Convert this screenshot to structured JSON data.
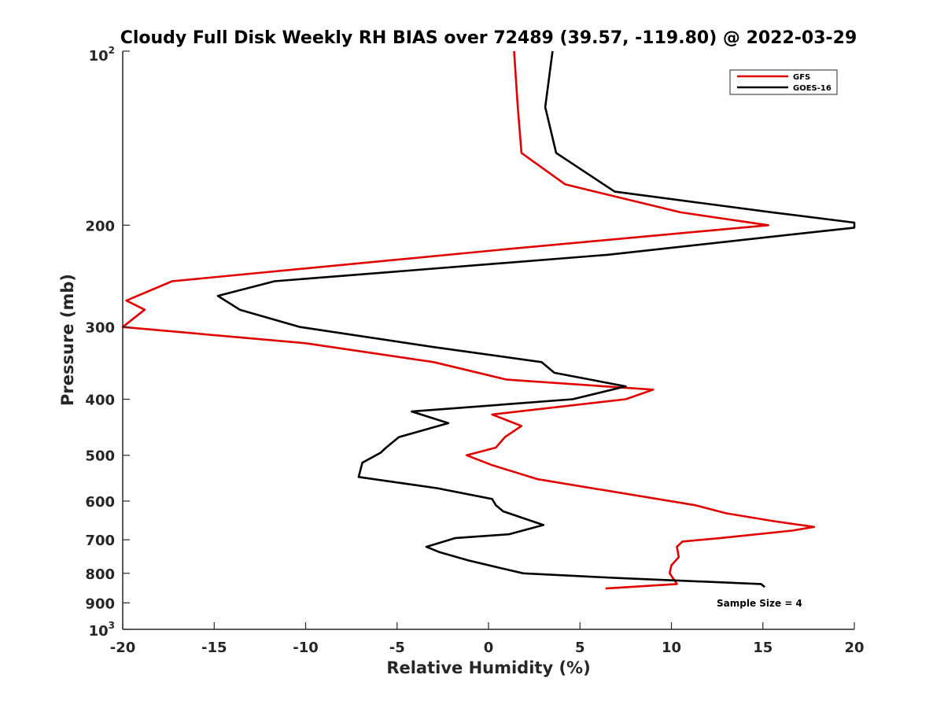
{
  "chart_data": {
    "type": "line",
    "title": "Cloudy Full Disk Weekly RH BIAS over 72489 (39.57, -119.80) @ 2022-03-29",
    "xlabel": "Relative Humidity (%)",
    "ylabel": "Pressure (mb)",
    "xlim": [
      -20,
      20
    ],
    "ylim": [
      100,
      1000
    ],
    "yscale": "log",
    "y_reversed": true,
    "grid": false,
    "legend_placement": "top-right",
    "annotation": "Sample Size = 4",
    "x_ticks": [
      -20,
      -15,
      -10,
      -5,
      0,
      5,
      10,
      15,
      20
    ],
    "x_tick_labels": [
      "-20",
      "-15",
      "-10",
      "-5",
      "0",
      "5",
      "10",
      "15",
      "20"
    ],
    "y_ticks": [
      100,
      200,
      300,
      400,
      500,
      600,
      700,
      800,
      900,
      1000
    ],
    "y_tick_labels": [
      {
        "base": "10",
        "sup": "2"
      },
      {
        "base": "200"
      },
      {
        "base": "300"
      },
      {
        "base": "400"
      },
      {
        "base": "500"
      },
      {
        "base": "600"
      },
      {
        "base": "700"
      },
      {
        "base": "800"
      },
      {
        "base": "900"
      },
      {
        "base": "10",
        "sup": "3"
      }
    ],
    "series": [
      {
        "name": "GFS",
        "color": "#e00000",
        "points": [
          [
            1.4,
            100
          ],
          [
            1.6,
            125
          ],
          [
            1.8,
            150
          ],
          [
            4.2,
            170
          ],
          [
            10.5,
            190
          ],
          [
            15.3,
            200
          ],
          [
            1.0,
            220
          ],
          [
            -17.3,
            250
          ],
          [
            -19.8,
            270
          ],
          [
            -18.8,
            280
          ],
          [
            -20.0,
            300
          ],
          [
            -10.0,
            320
          ],
          [
            -3.0,
            345
          ],
          [
            1.0,
            370
          ],
          [
            9.0,
            385
          ],
          [
            7.5,
            400
          ],
          [
            0.2,
            425
          ],
          [
            1.8,
            445
          ],
          [
            0.9,
            465
          ],
          [
            0.4,
            485
          ],
          [
            -1.2,
            500
          ],
          [
            0.2,
            520
          ],
          [
            2.7,
            550
          ],
          [
            11.3,
            610
          ],
          [
            13.0,
            630
          ],
          [
            15.6,
            650
          ],
          [
            17.8,
            665
          ],
          [
            16.6,
            675
          ],
          [
            12.7,
            695
          ],
          [
            10.6,
            705
          ],
          [
            10.3,
            720
          ],
          [
            10.4,
            750
          ],
          [
            10.0,
            775
          ],
          [
            9.9,
            800
          ],
          [
            10.2,
            825
          ],
          [
            10.3,
            835
          ],
          [
            6.4,
            850
          ]
        ]
      },
      {
        "name": "GOES-16",
        "color": "#000000",
        "points": [
          [
            3.5,
            100
          ],
          [
            3.1,
            125
          ],
          [
            3.7,
            150
          ],
          [
            6.9,
            175
          ],
          [
            15.5,
            190
          ],
          [
            20.0,
            198
          ],
          [
            20.0,
            202
          ],
          [
            6.5,
            225
          ],
          [
            -11.7,
            250
          ],
          [
            -14.8,
            265
          ],
          [
            -13.6,
            280
          ],
          [
            -10.3,
            300
          ],
          [
            -3.0,
            325
          ],
          [
            2.9,
            345
          ],
          [
            3.6,
            360
          ],
          [
            7.5,
            380
          ],
          [
            4.6,
            400
          ],
          [
            -4.2,
            420
          ],
          [
            -2.2,
            440
          ],
          [
            -4.9,
            465
          ],
          [
            -5.6,
            485
          ],
          [
            -5.9,
            495
          ],
          [
            -6.9,
            515
          ],
          [
            -7.1,
            545
          ],
          [
            -2.8,
            570
          ],
          [
            0.2,
            595
          ],
          [
            0.4,
            610
          ],
          [
            0.8,
            625
          ],
          [
            3.0,
            660
          ],
          [
            1.1,
            685
          ],
          [
            -1.8,
            695
          ],
          [
            -3.4,
            720
          ],
          [
            -2.7,
            735
          ],
          [
            -1.1,
            760
          ],
          [
            0.4,
            780
          ],
          [
            1.9,
            800
          ],
          [
            7.0,
            815
          ],
          [
            14.9,
            835
          ],
          [
            15.1,
            845
          ]
        ]
      }
    ]
  }
}
